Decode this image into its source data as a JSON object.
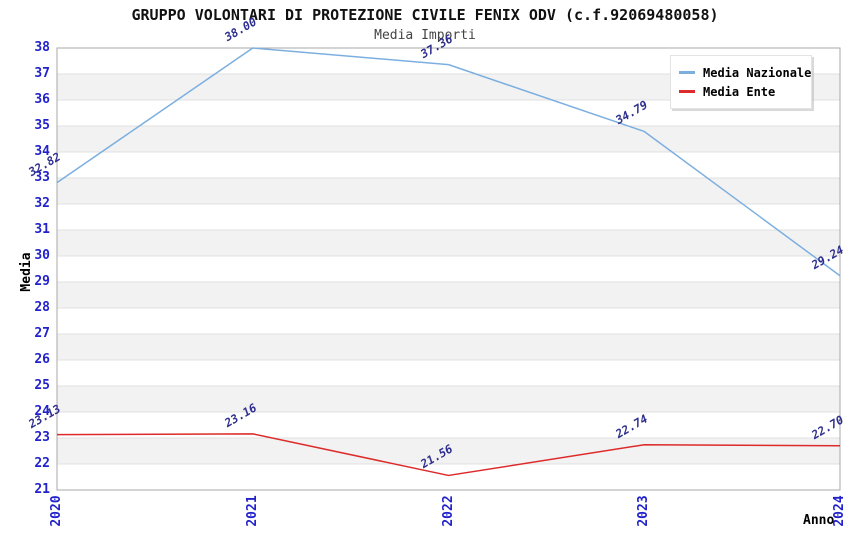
{
  "header": {
    "title": "GRUPPO VOLONTARI DI PROTEZIONE CIVILE FENIX ODV (c.f.92069480058)",
    "subtitle": "Media Importi"
  },
  "chart_data": {
    "type": "line",
    "categories": [
      "2020",
      "2021",
      "2022",
      "2023",
      "2024"
    ],
    "series": [
      {
        "name": "Media Nazionale",
        "color": "#7cafe0",
        "values": [
          32.82,
          38.0,
          37.36,
          34.79,
          29.24
        ]
      },
      {
        "name": "Media Ente",
        "color": "#dd2a2a",
        "values": [
          23.13,
          23.16,
          21.56,
          22.74,
          22.7
        ]
      }
    ],
    "xlabel": "Anno",
    "ylabel": "Media",
    "ylim": [
      21,
      38
    ],
    "ytick_step": 1,
    "grid": true,
    "legend_position": "top-right",
    "point_label_decimals": 2,
    "colors": {
      "band_even": "#ffffff",
      "band_odd": "#f2f2f2",
      "gridline": "#e0e0e0",
      "plot_border": "#a8a8a8",
      "tick_label": "#2222cc",
      "point_label": "#2f2f8f"
    }
  }
}
